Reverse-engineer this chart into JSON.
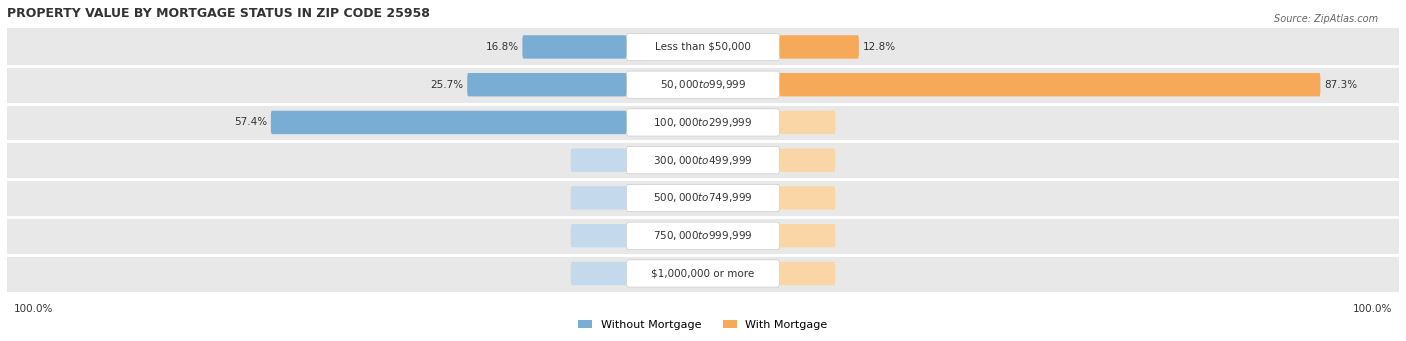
{
  "title": "PROPERTY VALUE BY MORTGAGE STATUS IN ZIP CODE 25958",
  "source": "Source: ZipAtlas.com",
  "categories": [
    "Less than $50,000",
    "$50,000 to $99,999",
    "$100,000 to $299,999",
    "$300,000 to $499,999",
    "$500,000 to $749,999",
    "$750,000 to $999,999",
    "$1,000,000 or more"
  ],
  "without_mortgage": [
    16.8,
    25.7,
    57.4,
    0.0,
    0.0,
    0.0,
    0.0
  ],
  "with_mortgage": [
    12.8,
    87.3,
    0.0,
    0.0,
    0.0,
    0.0,
    0.0
  ],
  "blue_color": "#7aadd4",
  "orange_color": "#f5a959",
  "blue_light": "#c5d9ed",
  "orange_light": "#fad5a5",
  "bg_row_color": "#e8e8e8",
  "label_fontsize": 7.5,
  "title_fontsize": 9,
  "axis_label_left": "100.0%",
  "axis_label_right": "100.0%",
  "max_val": 100.0
}
